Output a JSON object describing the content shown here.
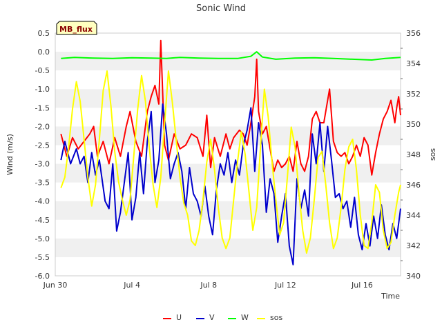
{
  "chart_data": {
    "type": "line",
    "title": "Sonic Wind",
    "badge": "MB_flux",
    "xlabel": "Time",
    "ylabel": "Wind (m/s)",
    "y2label": "sos",
    "x_ticks": [
      "Jun 30",
      "Jul 4",
      "Jul 8",
      "Jul 12",
      "Jul 16"
    ],
    "x_range_days": [
      0,
      18
    ],
    "ylim": [
      -6.0,
      0.5
    ],
    "y_ticks": [
      "0.5",
      "0.0",
      "-0.5",
      "-1.0",
      "-1.5",
      "-2.0",
      "-2.5",
      "-3.0",
      "-3.5",
      "-4.0",
      "-4.5",
      "-5.0",
      "-5.5",
      "-6.0"
    ],
    "y2lim": [
      340,
      356
    ],
    "y2_ticks": [
      "356",
      "354",
      "352",
      "350",
      "348",
      "346",
      "344",
      "342",
      "340"
    ],
    "grid_bands": true,
    "legend_position": "bottom",
    "series": [
      {
        "name": "U",
        "axis": "left",
        "color": "#ff0000",
        "points": [
          [
            0.3,
            -2.2
          ],
          [
            0.6,
            -2.8
          ],
          [
            0.9,
            -2.3
          ],
          [
            1.2,
            -2.6
          ],
          [
            1.5,
            -2.4
          ],
          [
            1.8,
            -2.2
          ],
          [
            2.0,
            -2.0
          ],
          [
            2.2,
            -2.8
          ],
          [
            2.5,
            -2.4
          ],
          [
            2.8,
            -3.0
          ],
          [
            3.1,
            -2.3
          ],
          [
            3.4,
            -2.8
          ],
          [
            3.7,
            -2.0
          ],
          [
            3.9,
            -1.6
          ],
          [
            4.2,
            -2.4
          ],
          [
            4.5,
            -2.8
          ],
          [
            4.8,
            -1.6
          ],
          [
            5.0,
            -1.2
          ],
          [
            5.2,
            -0.9
          ],
          [
            5.4,
            -1.4
          ],
          [
            5.5,
            0.3
          ],
          [
            5.7,
            -2.5
          ],
          [
            5.9,
            -2.9
          ],
          [
            6.2,
            -2.2
          ],
          [
            6.5,
            -2.6
          ],
          [
            6.8,
            -2.5
          ],
          [
            7.1,
            -2.2
          ],
          [
            7.4,
            -2.3
          ],
          [
            7.7,
            -2.8
          ],
          [
            7.9,
            -1.7
          ],
          [
            8.1,
            -3.1
          ],
          [
            8.3,
            -2.3
          ],
          [
            8.6,
            -2.8
          ],
          [
            8.9,
            -2.2
          ],
          [
            9.1,
            -2.6
          ],
          [
            9.3,
            -2.3
          ],
          [
            9.6,
            -2.1
          ],
          [
            9.8,
            -2.2
          ],
          [
            10.0,
            -2.5
          ],
          [
            10.2,
            -1.9
          ],
          [
            10.4,
            -1.2
          ],
          [
            10.5,
            -0.2
          ],
          [
            10.6,
            -1.6
          ],
          [
            10.8,
            -2.2
          ],
          [
            11.0,
            -2.0
          ],
          [
            11.2,
            -2.6
          ],
          [
            11.4,
            -3.2
          ],
          [
            11.6,
            -2.9
          ],
          [
            11.8,
            -3.1
          ],
          [
            12.0,
            -3.0
          ],
          [
            12.2,
            -2.8
          ],
          [
            12.4,
            -3.2
          ],
          [
            12.6,
            -2.4
          ],
          [
            12.8,
            -3.0
          ],
          [
            13.0,
            -3.2
          ],
          [
            13.2,
            -2.8
          ],
          [
            13.4,
            -1.8
          ],
          [
            13.6,
            -1.6
          ],
          [
            13.8,
            -1.9
          ],
          [
            14.0,
            -1.9
          ],
          [
            14.2,
            -1.3
          ],
          [
            14.3,
            -1.0
          ],
          [
            14.5,
            -2.4
          ],
          [
            14.7,
            -2.7
          ],
          [
            14.9,
            -2.8
          ],
          [
            15.1,
            -2.7
          ],
          [
            15.3,
            -3.0
          ],
          [
            15.5,
            -2.8
          ],
          [
            15.7,
            -2.5
          ],
          [
            15.9,
            -2.8
          ],
          [
            16.1,
            -2.3
          ],
          [
            16.3,
            -2.5
          ],
          [
            16.5,
            -3.3
          ],
          [
            16.7,
            -2.7
          ],
          [
            16.9,
            -2.2
          ],
          [
            17.1,
            -1.8
          ],
          [
            17.3,
            -1.6
          ],
          [
            17.5,
            -1.3
          ],
          [
            17.7,
            -1.9
          ],
          [
            17.8,
            -1.5
          ],
          [
            17.9,
            -1.2
          ],
          [
            18.0,
            -1.7
          ]
        ]
      },
      {
        "name": "V",
        "axis": "left",
        "color": "#0000cc",
        "points": [
          [
            0.3,
            -2.9
          ],
          [
            0.5,
            -2.4
          ],
          [
            0.8,
            -3.0
          ],
          [
            1.1,
            -2.6
          ],
          [
            1.3,
            -3.0
          ],
          [
            1.5,
            -2.8
          ],
          [
            1.7,
            -3.5
          ],
          [
            1.9,
            -2.7
          ],
          [
            2.1,
            -3.3
          ],
          [
            2.3,
            -2.9
          ],
          [
            2.6,
            -4.0
          ],
          [
            2.8,
            -4.2
          ],
          [
            3.0,
            -3.0
          ],
          [
            3.2,
            -4.8
          ],
          [
            3.4,
            -4.3
          ],
          [
            3.6,
            -3.5
          ],
          [
            3.8,
            -2.7
          ],
          [
            4.0,
            -4.5
          ],
          [
            4.2,
            -3.9
          ],
          [
            4.4,
            -2.7
          ],
          [
            4.6,
            -3.8
          ],
          [
            4.8,
            -2.4
          ],
          [
            5.0,
            -1.6
          ],
          [
            5.2,
            -3.5
          ],
          [
            5.4,
            -2.9
          ],
          [
            5.6,
            -1.4
          ],
          [
            5.8,
            -2.2
          ],
          [
            6.0,
            -3.4
          ],
          [
            6.2,
            -3.0
          ],
          [
            6.4,
            -2.7
          ],
          [
            6.6,
            -3.2
          ],
          [
            6.8,
            -4.2
          ],
          [
            7.0,
            -3.1
          ],
          [
            7.2,
            -3.8
          ],
          [
            7.4,
            -4.0
          ],
          [
            7.6,
            -4.4
          ],
          [
            7.8,
            -3.6
          ],
          [
            8.0,
            -4.4
          ],
          [
            8.2,
            -4.9
          ],
          [
            8.4,
            -3.7
          ],
          [
            8.6,
            -3.0
          ],
          [
            8.8,
            -3.3
          ],
          [
            9.0,
            -2.7
          ],
          [
            9.2,
            -3.5
          ],
          [
            9.4,
            -2.9
          ],
          [
            9.6,
            -3.3
          ],
          [
            9.8,
            -2.5
          ],
          [
            10.0,
            -2.1
          ],
          [
            10.2,
            -1.5
          ],
          [
            10.4,
            -3.2
          ],
          [
            10.6,
            -1.9
          ],
          [
            10.8,
            -2.5
          ],
          [
            11.0,
            -4.3
          ],
          [
            11.2,
            -3.4
          ],
          [
            11.4,
            -3.8
          ],
          [
            11.6,
            -5.1
          ],
          [
            11.8,
            -4.4
          ],
          [
            12.0,
            -3.8
          ],
          [
            12.2,
            -5.2
          ],
          [
            12.4,
            -5.7
          ],
          [
            12.6,
            -3.4
          ],
          [
            12.8,
            -4.2
          ],
          [
            13.0,
            -3.7
          ],
          [
            13.2,
            -4.4
          ],
          [
            13.4,
            -2.2
          ],
          [
            13.6,
            -3.0
          ],
          [
            13.8,
            -1.9
          ],
          [
            14.0,
            -3.2
          ],
          [
            14.2,
            -2.0
          ],
          [
            14.4,
            -2.9
          ],
          [
            14.6,
            -3.9
          ],
          [
            14.8,
            -3.8
          ],
          [
            15.0,
            -4.2
          ],
          [
            15.2,
            -4.0
          ],
          [
            15.4,
            -4.7
          ],
          [
            15.6,
            -3.9
          ],
          [
            15.8,
            -4.9
          ],
          [
            16.0,
            -5.3
          ],
          [
            16.2,
            -4.6
          ],
          [
            16.4,
            -5.2
          ],
          [
            16.6,
            -4.4
          ],
          [
            16.8,
            -5.0
          ],
          [
            17.0,
            -4.1
          ],
          [
            17.2,
            -4.9
          ],
          [
            17.4,
            -5.3
          ],
          [
            17.6,
            -4.6
          ],
          [
            17.8,
            -5.0
          ],
          [
            18.0,
            -4.2
          ]
        ]
      },
      {
        "name": "W",
        "axis": "left",
        "color": "#00ff00",
        "points": [
          [
            0.3,
            -0.18
          ],
          [
            1.0,
            -0.15
          ],
          [
            2.0,
            -0.17
          ],
          [
            3.0,
            -0.18
          ],
          [
            4.0,
            -0.16
          ],
          [
            5.0,
            -0.17
          ],
          [
            5.8,
            -0.18
          ],
          [
            6.5,
            -0.15
          ],
          [
            7.5,
            -0.17
          ],
          [
            8.5,
            -0.18
          ],
          [
            9.5,
            -0.18
          ],
          [
            10.2,
            -0.12
          ],
          [
            10.5,
            0.0
          ],
          [
            10.8,
            -0.14
          ],
          [
            11.5,
            -0.2
          ],
          [
            12.5,
            -0.17
          ],
          [
            13.5,
            -0.16
          ],
          [
            14.5,
            -0.18
          ],
          [
            15.5,
            -0.2
          ],
          [
            16.5,
            -0.22
          ],
          [
            17.2,
            -0.18
          ],
          [
            18.0,
            -0.15
          ]
        ]
      },
      {
        "name": "sos",
        "axis": "right",
        "color": "#ffff00",
        "points": [
          [
            0.3,
            345.8
          ],
          [
            0.5,
            346.5
          ],
          [
            0.7,
            348.5
          ],
          [
            0.9,
            351.0
          ],
          [
            1.1,
            352.8
          ],
          [
            1.3,
            351.5
          ],
          [
            1.5,
            349.0
          ],
          [
            1.7,
            346.5
          ],
          [
            1.9,
            344.6
          ],
          [
            2.1,
            346.0
          ],
          [
            2.3,
            349.0
          ],
          [
            2.5,
            352.2
          ],
          [
            2.7,
            353.5
          ],
          [
            2.9,
            351.2
          ],
          [
            3.1,
            348.2
          ],
          [
            3.3,
            346.2
          ],
          [
            3.5,
            345.0
          ],
          [
            3.7,
            344.0
          ],
          [
            3.9,
            345.0
          ],
          [
            4.1,
            348.0
          ],
          [
            4.3,
            351.0
          ],
          [
            4.5,
            353.2
          ],
          [
            4.7,
            351.5
          ],
          [
            4.9,
            348.5
          ],
          [
            5.1,
            346.0
          ],
          [
            5.3,
            344.5
          ],
          [
            5.5,
            346.5
          ],
          [
            5.7,
            350.0
          ],
          [
            5.9,
            353.5
          ],
          [
            6.1,
            351.5
          ],
          [
            6.3,
            349.0
          ],
          [
            6.5,
            346.5
          ],
          [
            6.7,
            344.8
          ],
          [
            6.9,
            344.0
          ],
          [
            7.1,
            342.3
          ],
          [
            7.3,
            342.0
          ],
          [
            7.5,
            343.0
          ],
          [
            7.7,
            345.0
          ],
          [
            7.9,
            347.5
          ],
          [
            8.1,
            349.0
          ],
          [
            8.3,
            347.0
          ],
          [
            8.5,
            344.5
          ],
          [
            8.7,
            342.5
          ],
          [
            8.9,
            341.8
          ],
          [
            9.1,
            342.5
          ],
          [
            9.3,
            345.0
          ],
          [
            9.5,
            347.5
          ],
          [
            9.7,
            349.5
          ],
          [
            9.9,
            348.0
          ],
          [
            10.1,
            345.5
          ],
          [
            10.3,
            343.0
          ],
          [
            10.5,
            344.5
          ],
          [
            10.7,
            348.5
          ],
          [
            10.9,
            352.3
          ],
          [
            11.1,
            350.5
          ],
          [
            11.3,
            347.5
          ],
          [
            11.5,
            345.0
          ],
          [
            11.7,
            342.7
          ],
          [
            11.9,
            343.5
          ],
          [
            12.1,
            346.5
          ],
          [
            12.3,
            349.8
          ],
          [
            12.5,
            348.5
          ],
          [
            12.7,
            345.5
          ],
          [
            12.9,
            343.0
          ],
          [
            13.1,
            341.5
          ],
          [
            13.3,
            342.5
          ],
          [
            13.5,
            345.0
          ],
          [
            13.7,
            347.8
          ],
          [
            13.9,
            348.2
          ],
          [
            14.1,
            346.0
          ],
          [
            14.3,
            343.5
          ],
          [
            14.5,
            341.8
          ],
          [
            14.7,
            342.5
          ],
          [
            14.9,
            344.5
          ],
          [
            15.1,
            347.0
          ],
          [
            15.3,
            348.5
          ],
          [
            15.5,
            349.0
          ],
          [
            15.7,
            347.0
          ],
          [
            15.9,
            344.0
          ],
          [
            16.1,
            342.0
          ],
          [
            16.3,
            341.8
          ],
          [
            16.5,
            343.5
          ],
          [
            16.7,
            346.0
          ],
          [
            16.9,
            345.5
          ],
          [
            17.1,
            343.0
          ],
          [
            17.3,
            341.8
          ],
          [
            17.5,
            342.2
          ],
          [
            17.7,
            344.0
          ],
          [
            17.9,
            345.5
          ],
          [
            18.0,
            346.0
          ]
        ]
      }
    ]
  }
}
